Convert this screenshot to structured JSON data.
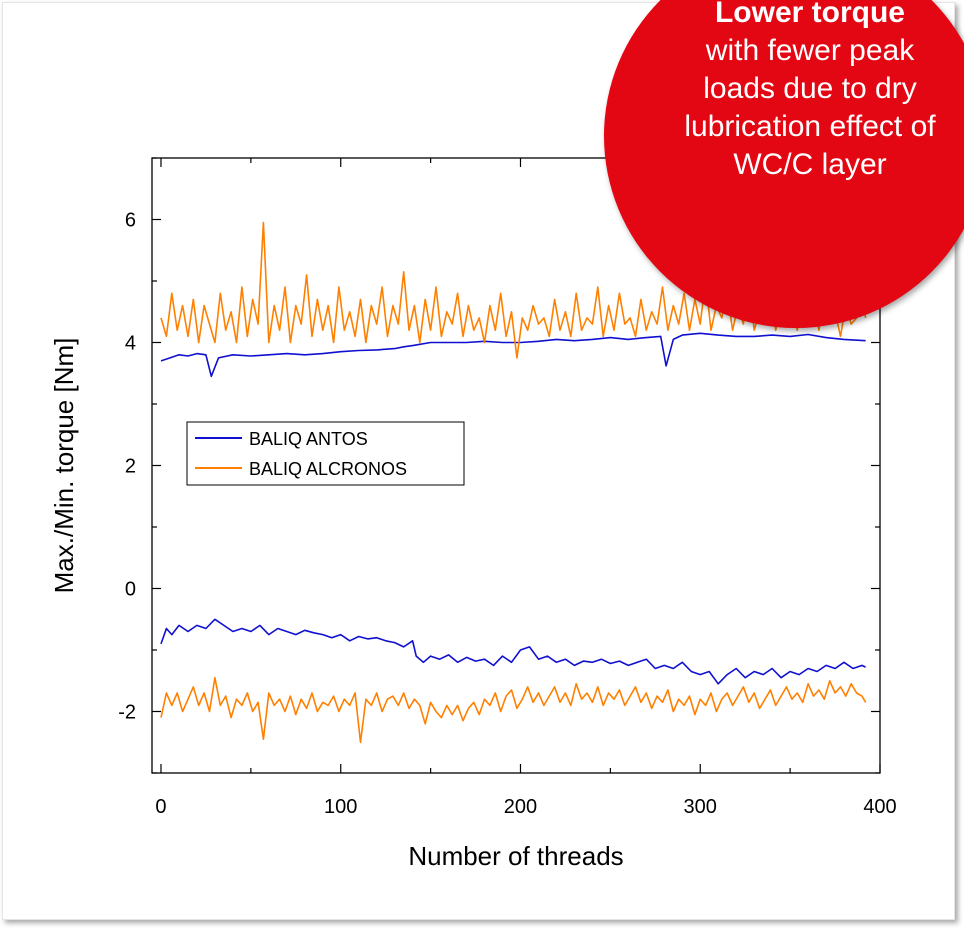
{
  "callout": {
    "headline": "Lower torque",
    "body": "with fewer peak\nloads due to dry\nlubrication effect of\nWC/C layer",
    "color": "#e30613"
  },
  "chart_data": {
    "type": "line",
    "title": "",
    "xlabel": "Number of threads",
    "ylabel": "Max./Min. torque [Nm]",
    "xlim": [
      -5,
      400
    ],
    "ylim": [
      -3,
      7
    ],
    "xticks": [
      0,
      100,
      200,
      300,
      400
    ],
    "yticks": [
      -2,
      0,
      2,
      4,
      6
    ],
    "grid": false,
    "legend_position": "center-left",
    "legend": [
      "BALIQ ANTOS",
      "BALIQ ALCRONOS"
    ],
    "series": [
      {
        "name": "BALIQ ANTOS",
        "color": "#1010d0",
        "role": "max",
        "x": [
          0,
          5,
          10,
          15,
          20,
          25,
          28,
          32,
          40,
          50,
          60,
          70,
          80,
          90,
          100,
          110,
          120,
          130,
          135,
          140,
          150,
          160,
          170,
          180,
          190,
          200,
          210,
          220,
          230,
          240,
          250,
          260,
          270,
          278,
          281,
          285,
          290,
          300,
          310,
          320,
          330,
          340,
          350,
          360,
          370,
          380,
          392
        ],
        "y": [
          3.7,
          3.75,
          3.8,
          3.78,
          3.82,
          3.8,
          3.45,
          3.75,
          3.8,
          3.78,
          3.8,
          3.82,
          3.8,
          3.82,
          3.85,
          3.87,
          3.88,
          3.9,
          3.93,
          3.95,
          4.0,
          4.0,
          4.0,
          4.02,
          4.0,
          4.0,
          4.02,
          4.05,
          4.03,
          4.05,
          4.08,
          4.05,
          4.08,
          4.1,
          3.62,
          4.05,
          4.12,
          4.15,
          4.12,
          4.1,
          4.1,
          4.12,
          4.1,
          4.13,
          4.08,
          4.05,
          4.03
        ]
      },
      {
        "name": "BALIQ ALCRONOS",
        "color": "#ff8000",
        "role": "max",
        "x": [
          0,
          3,
          6,
          9,
          12,
          15,
          18,
          21,
          24,
          27,
          30,
          33,
          36,
          39,
          42,
          45,
          48,
          51,
          54,
          57,
          60,
          63,
          66,
          69,
          72,
          75,
          78,
          81,
          84,
          87,
          90,
          93,
          96,
          99,
          102,
          105,
          108,
          111,
          114,
          117,
          120,
          123,
          126,
          129,
          132,
          135,
          138,
          141,
          144,
          147,
          150,
          153,
          156,
          159,
          162,
          165,
          168,
          171,
          174,
          177,
          180,
          183,
          186,
          189,
          192,
          195,
          198,
          201,
          204,
          207,
          210,
          213,
          216,
          219,
          222,
          225,
          228,
          231,
          234,
          237,
          240,
          243,
          246,
          249,
          252,
          255,
          258,
          261,
          264,
          267,
          270,
          273,
          276,
          279,
          282,
          285,
          288,
          291,
          294,
          297,
          300,
          303,
          306,
          309,
          312,
          315,
          318,
          321,
          324,
          327,
          330,
          333,
          336,
          339,
          342,
          345,
          348,
          351,
          354,
          357,
          360,
          363,
          366,
          369,
          372,
          375,
          378,
          381,
          384,
          387,
          390,
          392
        ],
        "y": [
          4.4,
          4.1,
          4.8,
          4.2,
          4.6,
          4.1,
          4.7,
          4.0,
          4.6,
          4.3,
          4.0,
          4.8,
          4.2,
          4.5,
          4.0,
          4.9,
          4.1,
          4.7,
          4.3,
          5.95,
          4.0,
          4.6,
          4.2,
          4.9,
          4.0,
          4.6,
          4.3,
          5.1,
          4.1,
          4.7,
          4.2,
          4.6,
          4.0,
          4.9,
          4.2,
          4.5,
          4.1,
          4.7,
          4.0,
          4.6,
          4.3,
          4.9,
          4.1,
          4.6,
          4.3,
          5.15,
          4.2,
          4.6,
          4.0,
          4.7,
          4.2,
          4.9,
          4.1,
          4.5,
          4.3,
          4.8,
          4.1,
          4.6,
          4.2,
          4.4,
          4.0,
          4.6,
          4.2,
          4.8,
          4.1,
          4.5,
          3.75,
          4.4,
          4.2,
          4.6,
          4.3,
          4.4,
          4.1,
          4.7,
          4.2,
          4.5,
          4.1,
          4.8,
          4.2,
          4.4,
          4.3,
          4.9,
          4.1,
          4.6,
          4.2,
          4.8,
          4.3,
          4.4,
          4.1,
          4.7,
          4.2,
          4.5,
          4.3,
          4.9,
          4.2,
          4.6,
          4.3,
          4.8,
          4.2,
          4.7,
          4.3,
          5.0,
          4.2,
          4.6,
          4.4,
          4.8,
          4.2,
          4.6,
          4.3,
          5.0,
          4.2,
          4.5,
          4.4,
          4.8,
          4.2,
          4.6,
          4.3,
          4.5,
          4.2,
          4.8,
          4.3,
          4.6,
          4.2,
          4.7,
          4.3,
          4.5,
          4.1,
          4.6,
          4.3,
          4.4,
          4.7,
          4.4
        ]
      },
      {
        "name": "BALIQ ANTOS",
        "color": "#1010d0",
        "role": "min",
        "x": [
          0,
          3,
          6,
          10,
          15,
          20,
          25,
          30,
          35,
          40,
          45,
          50,
          55,
          60,
          65,
          70,
          75,
          80,
          85,
          90,
          95,
          100,
          105,
          110,
          115,
          120,
          125,
          130,
          135,
          140,
          142,
          146,
          150,
          155,
          160,
          165,
          170,
          175,
          180,
          185,
          190,
          195,
          200,
          205,
          210,
          215,
          220,
          225,
          230,
          235,
          240,
          245,
          250,
          255,
          260,
          265,
          270,
          275,
          280,
          285,
          290,
          295,
          300,
          305,
          310,
          315,
          320,
          325,
          330,
          335,
          340,
          345,
          350,
          355,
          360,
          365,
          370,
          375,
          380,
          385,
          390,
          392
        ],
        "y": [
          -0.9,
          -0.65,
          -0.75,
          -0.6,
          -0.7,
          -0.6,
          -0.65,
          -0.5,
          -0.6,
          -0.7,
          -0.65,
          -0.7,
          -0.6,
          -0.75,
          -0.65,
          -0.7,
          -0.75,
          -0.68,
          -0.72,
          -0.75,
          -0.8,
          -0.75,
          -0.85,
          -0.78,
          -0.82,
          -0.8,
          -0.85,
          -0.88,
          -0.95,
          -0.85,
          -1.1,
          -1.2,
          -1.1,
          -1.15,
          -1.08,
          -1.2,
          -1.12,
          -1.18,
          -1.15,
          -1.25,
          -1.1,
          -1.2,
          -1.0,
          -0.95,
          -1.15,
          -1.1,
          -1.2,
          -1.15,
          -1.25,
          -1.18,
          -1.2,
          -1.15,
          -1.22,
          -1.18,
          -1.25,
          -1.2,
          -1.15,
          -1.3,
          -1.25,
          -1.3,
          -1.2,
          -1.35,
          -1.4,
          -1.35,
          -1.55,
          -1.4,
          -1.3,
          -1.45,
          -1.35,
          -1.4,
          -1.3,
          -1.45,
          -1.35,
          -1.4,
          -1.3,
          -1.35,
          -1.25,
          -1.3,
          -1.2,
          -1.3,
          -1.25,
          -1.28
        ]
      },
      {
        "name": "BALIQ ALCRONOS",
        "color": "#ff8000",
        "role": "min",
        "x": [
          0,
          3,
          6,
          9,
          12,
          15,
          18,
          21,
          24,
          27,
          30,
          33,
          36,
          39,
          42,
          45,
          48,
          51,
          54,
          57,
          60,
          63,
          66,
          69,
          72,
          75,
          78,
          81,
          84,
          87,
          90,
          93,
          96,
          99,
          102,
          105,
          108,
          111,
          114,
          117,
          120,
          123,
          126,
          129,
          132,
          135,
          138,
          141,
          144,
          147,
          150,
          153,
          156,
          159,
          162,
          165,
          168,
          171,
          174,
          177,
          180,
          183,
          186,
          189,
          192,
          195,
          198,
          201,
          204,
          207,
          210,
          213,
          216,
          219,
          222,
          225,
          228,
          231,
          234,
          237,
          240,
          243,
          246,
          249,
          252,
          255,
          258,
          261,
          264,
          267,
          270,
          273,
          276,
          279,
          282,
          285,
          288,
          291,
          294,
          297,
          300,
          303,
          306,
          309,
          312,
          315,
          318,
          321,
          324,
          327,
          330,
          333,
          336,
          339,
          342,
          345,
          348,
          351,
          354,
          357,
          360,
          363,
          366,
          369,
          372,
          375,
          378,
          381,
          384,
          387,
          390,
          392
        ],
        "y": [
          -2.1,
          -1.7,
          -1.9,
          -1.7,
          -2.0,
          -1.8,
          -1.6,
          -1.9,
          -1.7,
          -2.0,
          -1.45,
          -1.9,
          -1.75,
          -2.1,
          -1.8,
          -1.9,
          -1.7,
          -2.0,
          -1.85,
          -2.45,
          -1.7,
          -1.9,
          -1.8,
          -2.0,
          -1.75,
          -2.05,
          -1.8,
          -1.95,
          -1.7,
          -2.0,
          -1.85,
          -1.9,
          -1.75,
          -2.0,
          -1.8,
          -1.9,
          -1.7,
          -2.5,
          -1.8,
          -1.9,
          -1.7,
          -2.0,
          -1.8,
          -1.75,
          -1.9,
          -1.7,
          -1.95,
          -1.8,
          -1.9,
          -2.2,
          -1.85,
          -2.0,
          -2.1,
          -1.9,
          -2.05,
          -1.9,
          -2.15,
          -1.95,
          -1.85,
          -2.05,
          -1.8,
          -1.9,
          -1.7,
          -2.0,
          -1.75,
          -1.65,
          -1.95,
          -1.8,
          -1.6,
          -1.85,
          -1.7,
          -1.9,
          -1.75,
          -1.6,
          -1.85,
          -1.7,
          -1.9,
          -1.55,
          -1.8,
          -1.7,
          -1.85,
          -1.6,
          -1.9,
          -1.7,
          -1.8,
          -1.65,
          -1.9,
          -1.75,
          -1.6,
          -1.85,
          -1.7,
          -1.95,
          -1.75,
          -1.85,
          -1.65,
          -2.0,
          -1.8,
          -1.9,
          -1.75,
          -2.05,
          -1.8,
          -1.9,
          -1.7,
          -2.0,
          -1.8,
          -1.7,
          -1.9,
          -1.75,
          -1.6,
          -1.85,
          -1.7,
          -1.95,
          -1.8,
          -1.65,
          -1.9,
          -1.75,
          -1.6,
          -1.8,
          -1.7,
          -1.85,
          -1.55,
          -1.75,
          -1.65,
          -1.8,
          -1.5,
          -1.7,
          -1.6,
          -1.75,
          -1.55,
          -1.7,
          -1.75,
          -1.85
        ]
      }
    ]
  }
}
